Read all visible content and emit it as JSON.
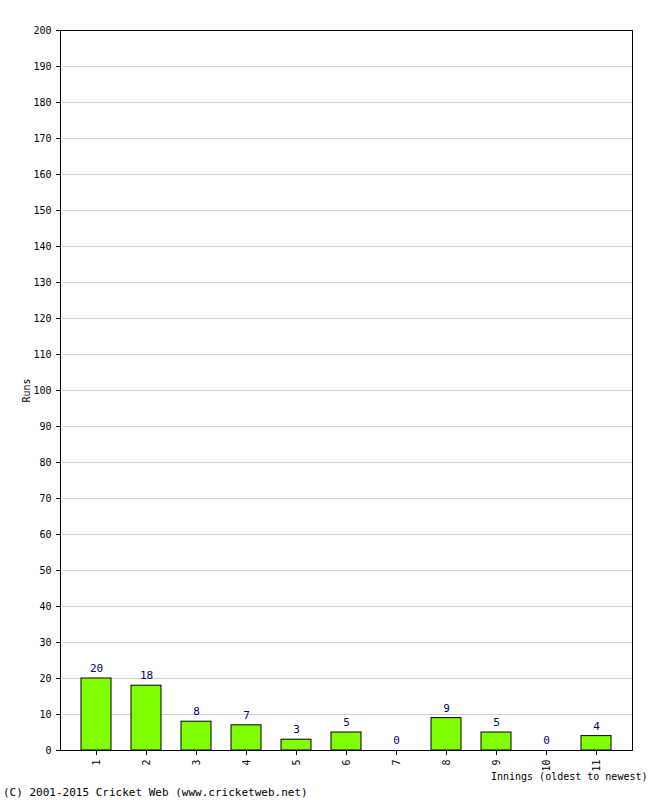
{
  "chart_data": {
    "type": "bar",
    "x_label": "Innings (oldest to newest)",
    "y_label": "Runs",
    "caption": "(C) 2001-2015 Cricket Web (www.cricketweb.net)",
    "categories": [
      "1",
      "2",
      "3",
      "4",
      "5",
      "6",
      "7",
      "8",
      "9",
      "10",
      "11"
    ],
    "values": [
      20,
      18,
      8,
      7,
      3,
      5,
      0,
      9,
      5,
      0,
      4
    ],
    "color": "#80ff00",
    "ylim": [
      0,
      200
    ],
    "yticks": [
      0,
      10,
      20,
      30,
      40,
      50,
      60,
      70,
      80,
      90,
      100,
      110,
      120,
      130,
      140,
      150,
      160,
      170,
      180,
      190,
      200
    ],
    "grid": true,
    "data_labels": true
  }
}
